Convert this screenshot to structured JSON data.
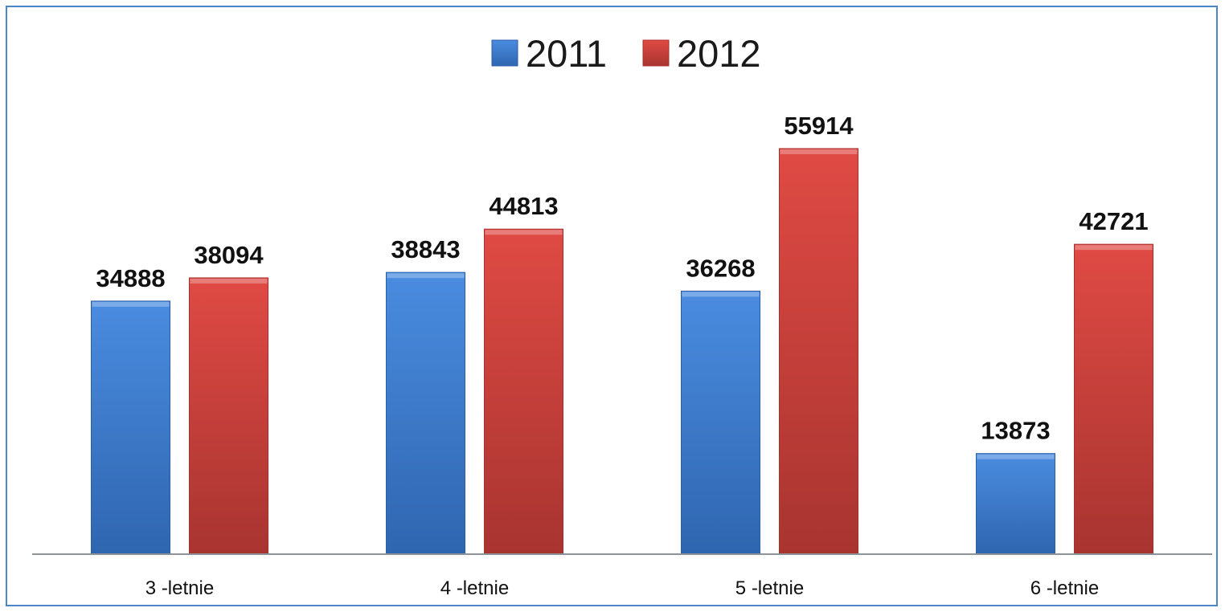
{
  "chart_data": {
    "type": "bar",
    "categories": [
      "3 -letnie",
      "4 -letnie",
      "5 -letnie",
      "6 -letnie"
    ],
    "series": [
      {
        "name": "2011",
        "values": [
          34888,
          38843,
          36268,
          13873
        ],
        "color": "#3d7fd4",
        "color_dark": "#2a5ea8"
      },
      {
        "name": "2012",
        "values": [
          38094,
          44813,
          55914,
          42721
        ],
        "color": "#db4540",
        "color_dark": "#a8302c"
      }
    ],
    "ylim": [
      0,
      62500
    ],
    "axis_color": "#8c9399",
    "grid": false,
    "legend_position": "top-center",
    "data_labels": true
  }
}
